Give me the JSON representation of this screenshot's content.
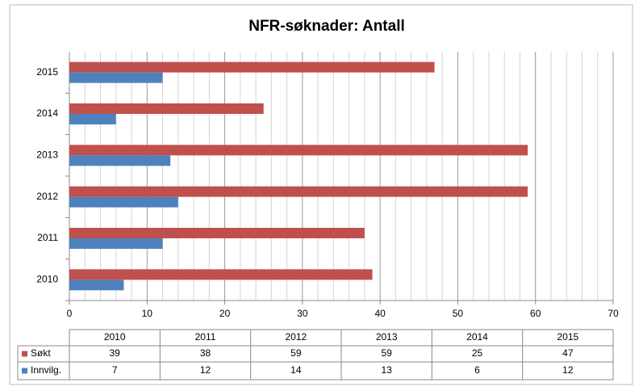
{
  "chart_data": {
    "type": "bar",
    "orientation": "horizontal",
    "title": "NFR-søknader: Antall",
    "categories": [
      "2010",
      "2011",
      "2012",
      "2013",
      "2014",
      "2015"
    ],
    "series": [
      {
        "name": "Søkt",
        "color": "#c0504d",
        "values": [
          39,
          38,
          59,
          59,
          25,
          47
        ]
      },
      {
        "name": "Innvilg.",
        "color": "#4f81bd",
        "values": [
          7,
          12,
          14,
          13,
          6,
          12
        ]
      }
    ],
    "xlim": [
      0,
      70
    ],
    "xticks": [
      0,
      10,
      20,
      30,
      40,
      50,
      60,
      70
    ],
    "grid": true,
    "data_table": true
  }
}
